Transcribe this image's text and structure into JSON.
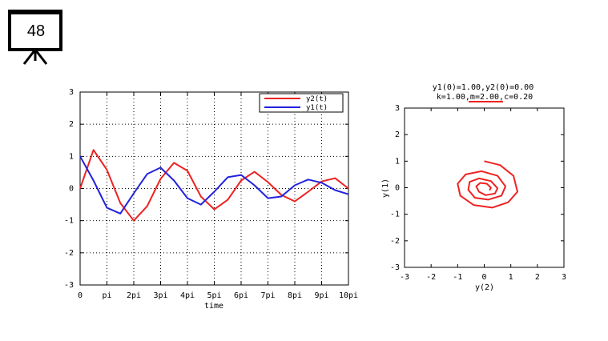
{
  "slide": {
    "number": "48",
    "icon": "projector-screen-icon"
  },
  "chart_data": [
    {
      "type": "line",
      "title": "",
      "xlabel": "time",
      "ylabel": "",
      "xlim": [
        0,
        31.4159
      ],
      "ylim": [
        -3,
        3
      ],
      "grid": true,
      "legend_position": "top-right",
      "x_tick_labels": [
        "0",
        "pi",
        "2pi",
        "3pi",
        "4pi",
        "5pi",
        "6pi",
        "7pi",
        "8pi",
        "9pi",
        "10pi"
      ],
      "x_tick_values": [
        0,
        3.1416,
        6.2832,
        9.4248,
        12.5664,
        15.708,
        18.8496,
        21.9911,
        25.1327,
        28.2743,
        31.4159
      ],
      "y_tick_labels": [
        "-3",
        "-2",
        "-1",
        "0",
        "1",
        "2",
        "3"
      ],
      "y_tick_values": [
        -3,
        -2,
        -1,
        0,
        1,
        2,
        3
      ],
      "series": [
        {
          "name": "y2(t)",
          "color": "#ee2222",
          "x": [
            0,
            1.57,
            3.14,
            4.71,
            6.28,
            7.85,
            9.42,
            10.99,
            12.57,
            14.14,
            15.71,
            17.28,
            18.85,
            20.42,
            21.99,
            23.56,
            25.13,
            26.7,
            28.27,
            29.85,
            31.42
          ],
          "y": [
            0,
            1.2,
            0.58,
            -0.45,
            -1.0,
            -0.55,
            0.3,
            0.8,
            0.55,
            -0.25,
            -0.65,
            -0.35,
            0.25,
            0.52,
            0.2,
            -0.2,
            -0.4,
            -0.1,
            0.22,
            0.32,
            0.0
          ]
        },
        {
          "name": "y1(t)",
          "color": "#2222dd",
          "x": [
            0,
            1.57,
            3.14,
            4.71,
            6.28,
            7.85,
            9.42,
            10.99,
            12.57,
            14.14,
            15.71,
            17.28,
            18.85,
            20.42,
            21.99,
            23.56,
            25.13,
            26.7,
            28.27,
            29.85,
            31.42
          ],
          "y": [
            1.0,
            0.25,
            -0.6,
            -0.78,
            -0.15,
            0.45,
            0.65,
            0.25,
            -0.3,
            -0.5,
            -0.1,
            0.35,
            0.42,
            0.1,
            -0.3,
            -0.25,
            0.1,
            0.28,
            0.18,
            -0.05,
            -0.18
          ]
        }
      ]
    },
    {
      "type": "line",
      "title": "y1(0)=1.00,y2(0)=0.00",
      "subtitle": "k=1.00,m=2.00,c=0.20",
      "xlabel": "y(2)",
      "ylabel": "y(1)",
      "xlim": [
        -3,
        3
      ],
      "ylim": [
        -3,
        3
      ],
      "grid": false,
      "x_tick_labels": [
        "-3",
        "-2",
        "-1",
        "0",
        "1",
        "2",
        "3"
      ],
      "x_tick_values": [
        -3,
        -2,
        -1,
        0,
        1,
        2,
        3
      ],
      "y_tick_labels": [
        "-3",
        "-2",
        "-1",
        "0",
        "1",
        "2",
        "3"
      ],
      "y_tick_values": [
        -3,
        -2,
        -1,
        0,
        1,
        2,
        3
      ],
      "series": [
        {
          "color": "#ee2222",
          "x": [
            0.0,
            0.6,
            1.1,
            1.25,
            0.9,
            0.3,
            -0.4,
            -0.9,
            -1.0,
            -0.7,
            -0.1,
            0.5,
            0.8,
            0.65,
            0.15,
            -0.35,
            -0.6,
            -0.55,
            -0.2,
            0.25,
            0.5,
            0.4,
            0.05,
            -0.2,
            -0.3,
            -0.15,
            0.1,
            0.25,
            0.2
          ],
          "y": [
            1.0,
            0.85,
            0.45,
            -0.15,
            -0.55,
            -0.75,
            -0.65,
            -0.3,
            0.15,
            0.5,
            0.62,
            0.45,
            0.05,
            -0.3,
            -0.45,
            -0.38,
            -0.08,
            0.22,
            0.35,
            0.25,
            -0.02,
            -0.22,
            -0.28,
            -0.15,
            0.05,
            0.18,
            0.15,
            0.0,
            -0.1
          ]
        }
      ]
    }
  ]
}
